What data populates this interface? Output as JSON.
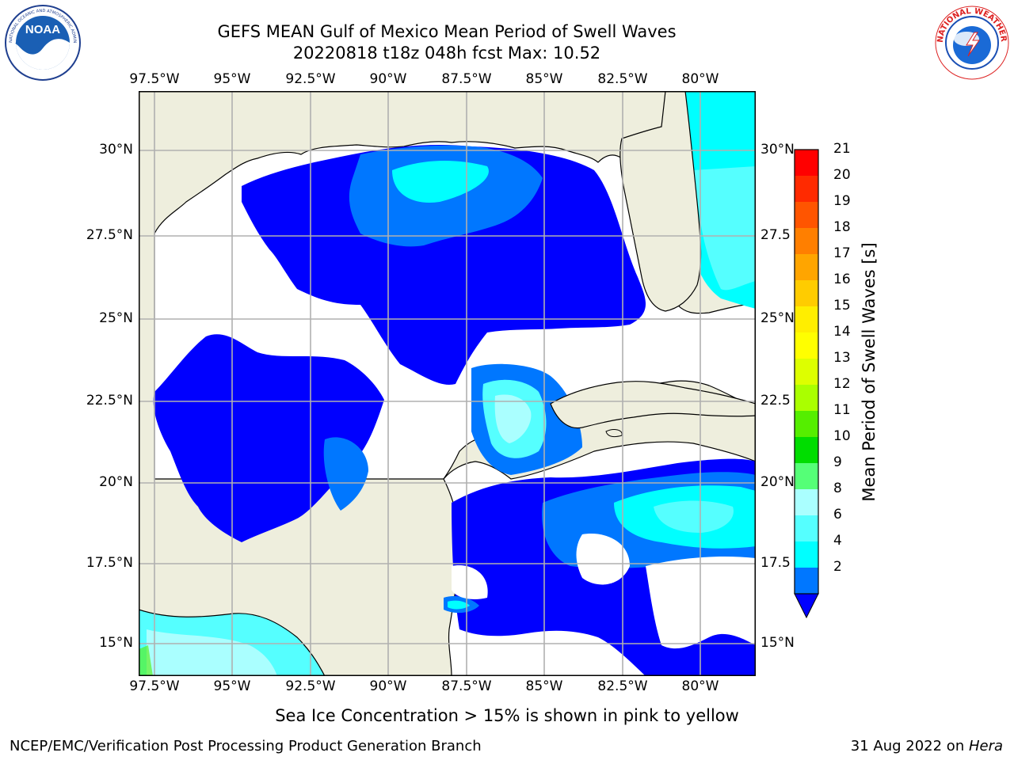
{
  "header": {
    "title_line1": "GEFS MEAN Gulf of Mexico Mean Period of Swell Waves",
    "title_line2": "20220818 t18z 048h fcst   Max: 10.52"
  },
  "logos": {
    "left": {
      "text": "NOAA",
      "ring_text": "NATIONAL OCEANIC AND ATMOSPHERIC ADMINISTRATION · U.S. DEPARTMENT OF COMMERCE"
    },
    "right": {
      "ring_text": "NATIONAL WEATHER SERVICE"
    }
  },
  "map": {
    "lon_labels": [
      "97.5°W",
      "95°W",
      "92.5°W",
      "90°W",
      "87.5°W",
      "85°W",
      "82.5°W",
      "80°W"
    ],
    "lat_labels_left": [
      "30°N",
      "27.5°N",
      "25°N",
      "22.5°N",
      "20°N",
      "17.5°N",
      "15°N"
    ],
    "lat_labels_right": [
      "30°N",
      "27.5",
      "25°N",
      "22.5",
      "20°N",
      "17.5",
      "15°N"
    ],
    "colors": {
      "land": "#eeeedd",
      "ocean_nodata": "#ffffff",
      "grid": "#b0b0b0",
      "coast": "#000000"
    }
  },
  "colorbar": {
    "label": "Mean Period of Swell Waves [s]",
    "ticks": [
      "21",
      "20",
      "19",
      "18",
      "17",
      "16",
      "15",
      "14",
      "13",
      "12",
      "11",
      "10",
      "9",
      "8",
      "6",
      "4",
      "2"
    ],
    "colors_top_to_bottom": [
      "#ff0000",
      "#ff2a00",
      "#ff5500",
      "#ff7f00",
      "#ffa500",
      "#ffcc00",
      "#ffee00",
      "#ffff00",
      "#ddff00",
      "#aaff00",
      "#55ee00",
      "#00dd00",
      "#55ff77",
      "#aaffff",
      "#55ffff",
      "#00ffff",
      "#0077ff"
    ],
    "underflow_color": "#0000ff"
  },
  "footer": {
    "caption": "Sea Ice Concentration > 15% is shown in pink to yellow",
    "left": "NCEP/EMC/Verification Post Processing Product Generation Branch",
    "right_prefix": "31 Aug 2022 on ",
    "right_italic": "Hera"
  }
}
